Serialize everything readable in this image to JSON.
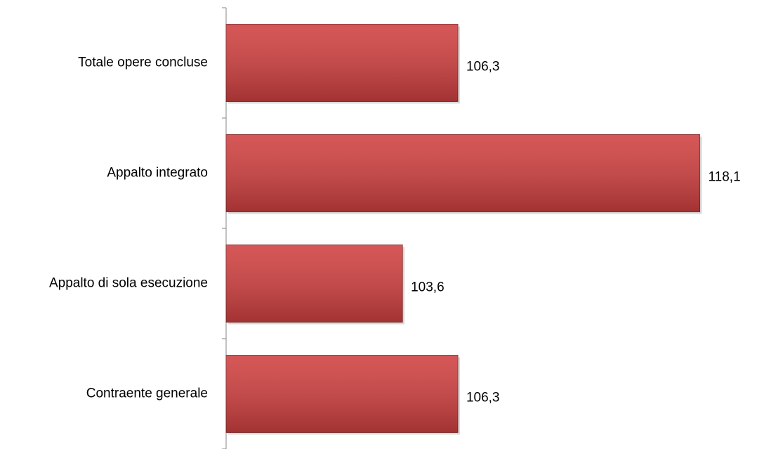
{
  "chart_data": {
    "type": "bar",
    "orientation": "horizontal",
    "categories": [
      "Totale opere concluse",
      "Appalto integrato",
      "Appalto di sola esecuzione",
      "Contraente generale"
    ],
    "values": [
      106.3,
      118.1,
      103.6,
      106.3
    ],
    "value_labels": [
      "106,3",
      "118,1",
      "103,6",
      "106,3"
    ],
    "color": "#d04040",
    "xlim": [
      95,
      120
    ]
  }
}
